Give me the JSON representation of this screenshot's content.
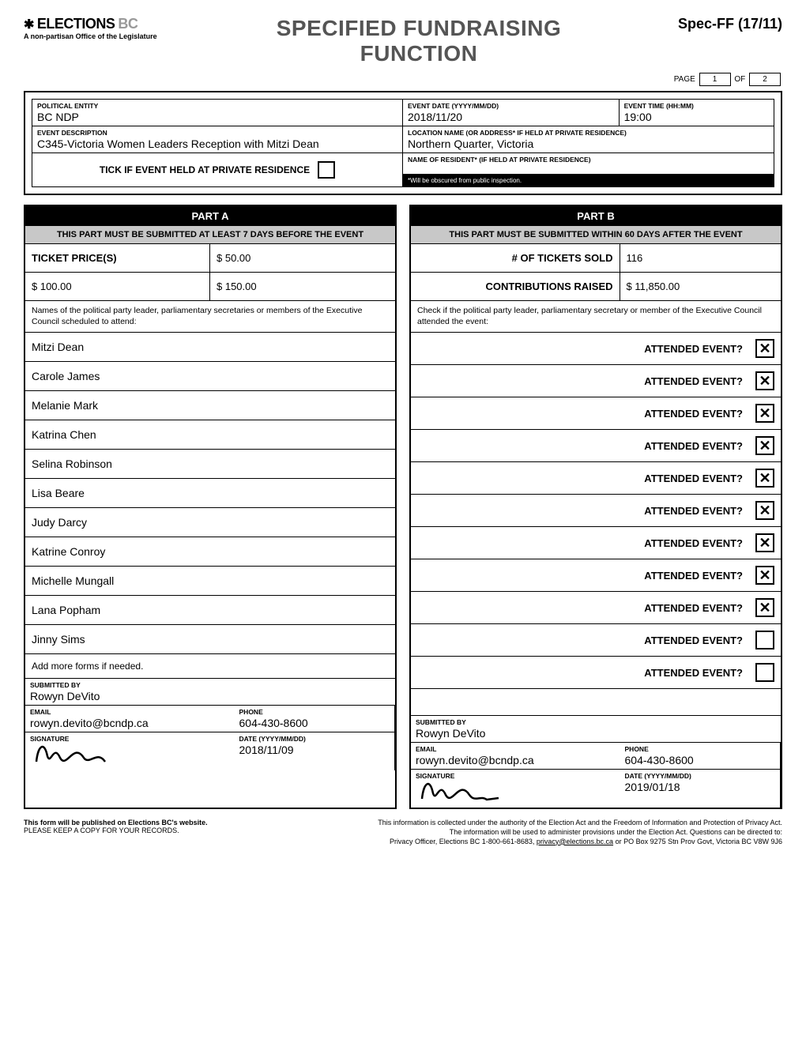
{
  "header": {
    "org_name": "ELECTIONS",
    "org_suffix": "BC",
    "org_tagline": "A non-partisan Office of the Legislature",
    "title_line1": "SPECIFIED FUNDRAISING",
    "title_line2": "FUNCTION",
    "form_code": "Spec-FF (17/11)",
    "page_label": "PAGE",
    "page_num": "1",
    "of_label": "OF",
    "page_total": "2"
  },
  "info": {
    "political_entity_label": "POLITICAL ENTITY",
    "political_entity": "BC NDP",
    "event_date_label": "EVENT DATE (YYYY/MM/DD)",
    "event_date": "2018/11/20",
    "event_time_label": "EVENT TIME (HH:MM)",
    "event_time": "19:00",
    "event_desc_label": "EVENT DESCRIPTION",
    "event_desc": "C345-Victoria Women Leaders Reception with Mitzi Dean",
    "location_label": "LOCATION NAME (OR ADDRESS* IF HELD AT PRIVATE RESIDENCE)",
    "location": "Northern Quarter, Victoria",
    "private_tick_label": "TICK IF EVENT HELD AT PRIVATE RESIDENCE",
    "resident_label": "NAME OF RESIDENT* (IF HELD AT PRIVATE RESIDENCE)",
    "resident": "",
    "obscure_note": "*Will be obscured from public inspection."
  },
  "partA": {
    "title": "PART A",
    "subtitle": "THIS PART MUST BE SUBMITTED AT LEAST 7 DAYS BEFORE THE EVENT",
    "ticket_price_label": "TICKET PRICE(S)",
    "price1": "$ 50.00",
    "price2": "$ 100.00",
    "price3": "$ 150.00",
    "names_note": "Names of the political party leader, parliamentary secretaries or members of the Executive Council scheduled to attend:",
    "attendees": [
      "Mitzi Dean",
      "Carole James",
      "Melanie Mark",
      "Katrina Chen",
      "Selina Robinson",
      "Lisa Beare",
      "Judy Darcy",
      "Katrine Conroy",
      "Michelle Mungall",
      "Lana Popham",
      "Jinny Sims"
    ],
    "add_more": "Add more forms if needed.",
    "submitted_by_label": "SUBMITTED BY",
    "submitted_by": "Rowyn DeVito",
    "email_label": "EMAIL",
    "email": "rowyn.devito@bcndp.ca",
    "phone_label": "PHONE",
    "phone": "604-430-8600",
    "signature_label": "SIGNATURE",
    "date_label": "DATE (YYYY/MM/DD)",
    "date": "2018/11/09"
  },
  "partB": {
    "title": "PART B",
    "subtitle": "THIS PART MUST BE SUBMITTED WITHIN 60 DAYS AFTER THE EVENT",
    "tickets_sold_label": "# OF TICKETS SOLD",
    "tickets_sold": "116",
    "contributions_label": "CONTRIBUTIONS RAISED",
    "contributions": "$ 11,850.00",
    "check_note": "Check if the political party leader, parliamentary secretary or member of the Executive Council attended the event:",
    "attended_label": "ATTENDED EVENT?",
    "attended": [
      true,
      true,
      true,
      true,
      true,
      true,
      true,
      true,
      true,
      false,
      false
    ],
    "submitted_by_label": "SUBMITTED BY",
    "submitted_by": "Rowyn DeVito",
    "email_label": "EMAIL",
    "email": "rowyn.devito@bcndp.ca",
    "phone_label": "PHONE",
    "phone": "604-430-8600",
    "signature_label": "SIGNATURE",
    "date_label": "DATE (YYYY/MM/DD)",
    "date": "2019/01/18"
  },
  "footer": {
    "l1": "This form will be published on Elections BC's website.",
    "l2": "PLEASE KEEP A COPY FOR YOUR RECORDS.",
    "r1": "This information is collected under the authority of the Election Act and the Freedom of Information and Protection of Privacy Act.",
    "r2": "The information will be used to administer provisions under the Election Act. Questions can be directed to:",
    "r3a": "Privacy Officer, Elections BC 1-800-661-8683, ",
    "r3b": "privacy@elections.bc.ca",
    "r3c": " or PO Box 9275 Stn Prov Govt, Victoria BC V8W 9J6"
  }
}
